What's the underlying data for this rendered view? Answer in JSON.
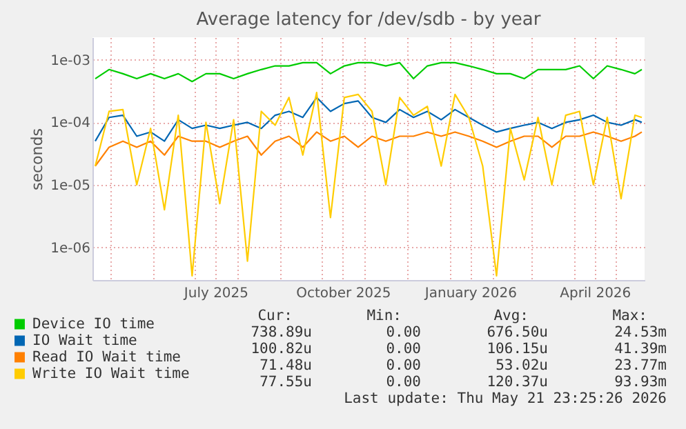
{
  "chart_data": {
    "type": "line",
    "title": "Average latency for /dev/sdb - by year",
    "ylabel": "seconds",
    "log": true,
    "grid": true,
    "legend": "bottom",
    "marker": "none",
    "line_style": "solid",
    "xlim": [
      "2025-04-18",
      "2026-05-22"
    ],
    "xticks": [
      {
        "value": "2025-05-01",
        "label": null
      },
      {
        "value": "2025-06-01",
        "label": null
      },
      {
        "value": "2025-07-01",
        "label": null
      },
      {
        "value": "2025-07-16",
        "label": "July 2025"
      },
      {
        "value": "2025-08-01",
        "label": null
      },
      {
        "value": "2025-09-01",
        "label": null
      },
      {
        "value": "2025-10-01",
        "label": null
      },
      {
        "value": "2025-10-16",
        "label": "October 2025"
      },
      {
        "value": "2025-11-01",
        "label": null
      },
      {
        "value": "2025-12-01",
        "label": null
      },
      {
        "value": "2026-01-01",
        "label": null
      },
      {
        "value": "2026-01-16",
        "label": "January 2026"
      },
      {
        "value": "2026-02-01",
        "label": null
      },
      {
        "value": "2026-03-01",
        "label": null
      },
      {
        "value": "2026-04-01",
        "label": null
      },
      {
        "value": "2026-04-16",
        "label": "April 2026"
      },
      {
        "value": "2026-05-01",
        "label": null
      }
    ],
    "ylim": [
      3e-07,
      0.0023
    ],
    "yticks": [
      {
        "value": 0.001,
        "label": "1e-03"
      },
      {
        "value": 0.0001,
        "label": "1e-04"
      },
      {
        "value": 1e-05,
        "label": "1e-05"
      },
      {
        "value": 1e-06,
        "label": "1e-06"
      }
    ],
    "x": [
      "2025-04-20",
      "2025-04-30",
      "2025-05-10",
      "2025-05-20",
      "2025-05-30",
      "2025-06-09",
      "2025-06-19",
      "2025-06-29",
      "2025-07-09",
      "2025-07-19",
      "2025-07-29",
      "2025-08-08",
      "2025-08-18",
      "2025-08-28",
      "2025-09-07",
      "2025-09-17",
      "2025-09-27",
      "2025-10-07",
      "2025-10-17",
      "2025-10-27",
      "2025-11-06",
      "2025-11-16",
      "2025-11-26",
      "2025-12-06",
      "2025-12-16",
      "2025-12-26",
      "2026-01-05",
      "2026-01-15",
      "2026-01-25",
      "2026-02-04",
      "2026-02-14",
      "2026-02-24",
      "2026-03-06",
      "2026-03-16",
      "2026-03-26",
      "2026-04-05",
      "2026-04-15",
      "2026-04-25",
      "2026-05-05",
      "2026-05-15",
      "2026-05-20"
    ],
    "series": [
      {
        "name": "Device IO time",
        "color": "#00cc00",
        "values": [
          0.0005,
          0.0007,
          0.0006,
          0.0005,
          0.0006,
          0.0005,
          0.0006,
          0.00045,
          0.0006,
          0.0006,
          0.0005,
          0.0006,
          0.0007,
          0.0008,
          0.0008,
          0.0009,
          0.0009,
          0.0006,
          0.0008,
          0.0009,
          0.0009,
          0.0008,
          0.0009,
          0.0005,
          0.0008,
          0.0009,
          0.0009,
          0.0008,
          0.0007,
          0.0006,
          0.0006,
          0.0005,
          0.0007,
          0.0007,
          0.0007,
          0.0008,
          0.0005,
          0.0008,
          0.0007,
          0.0006,
          0.0007
        ]
      },
      {
        "name": "IO Wait time",
        "color": "#0066b3",
        "values": [
          5e-05,
          0.00012,
          0.00013,
          6e-05,
          7e-05,
          5e-05,
          0.00011,
          8e-05,
          9e-05,
          8e-05,
          9e-05,
          0.0001,
          8e-05,
          0.00013,
          0.00015,
          0.00012,
          0.00025,
          0.00015,
          0.0002,
          0.00022,
          0.00012,
          0.0001,
          0.00016,
          0.00012,
          0.00015,
          0.00011,
          0.00016,
          0.00012,
          9e-05,
          7e-05,
          8e-05,
          9e-05,
          0.0001,
          8e-05,
          0.0001,
          0.00011,
          0.00013,
          0.0001,
          9e-05,
          0.00011,
          0.0001
        ]
      },
      {
        "name": "Read IO Wait time",
        "color": "#ff8000",
        "values": [
          2e-05,
          4e-05,
          5e-05,
          4e-05,
          5e-05,
          3e-05,
          6e-05,
          5e-05,
          5e-05,
          4e-05,
          5e-05,
          6e-05,
          3e-05,
          5e-05,
          6e-05,
          4e-05,
          7e-05,
          5e-05,
          6e-05,
          4e-05,
          6e-05,
          5e-05,
          6e-05,
          6e-05,
          7e-05,
          6e-05,
          7e-05,
          6e-05,
          5e-05,
          4e-05,
          5e-05,
          6e-05,
          6e-05,
          4e-05,
          6e-05,
          6e-05,
          7e-05,
          6e-05,
          5e-05,
          6e-05,
          7e-05
        ]
      },
      {
        "name": "Write IO Wait time",
        "color": "#ffcc00",
        "values": [
          2e-05,
          0.00015,
          0.00016,
          1e-05,
          8e-05,
          4e-06,
          0.00013,
          3.5e-07,
          0.0001,
          5e-06,
          0.00011,
          6e-07,
          0.00015,
          9e-05,
          0.00025,
          3e-05,
          0.0003,
          3e-06,
          0.00025,
          0.00028,
          0.00015,
          1e-05,
          0.00025,
          0.00013,
          0.00018,
          2e-05,
          0.00028,
          0.00012,
          2e-05,
          3.5e-07,
          8e-05,
          1.2e-05,
          0.00012,
          1e-05,
          0.00013,
          0.00015,
          1e-05,
          0.00012,
          6e-06,
          0.00013,
          0.00012
        ]
      }
    ],
    "annotations": [
      "Cur:",
      "Min:",
      "Avg:",
      "Max:",
      "738.89u",
      "0.00",
      "676.50u",
      "24.53m",
      "100.82u",
      "0.00",
      "106.15u",
      "41.39m",
      "71.48u",
      "0.00",
      "53.02u",
      "23.77m",
      "77.55u",
      "0.00",
      "120.37u",
      "93.93m",
      "Last update: Thu May 21 23:25:26 2026"
    ]
  }
}
